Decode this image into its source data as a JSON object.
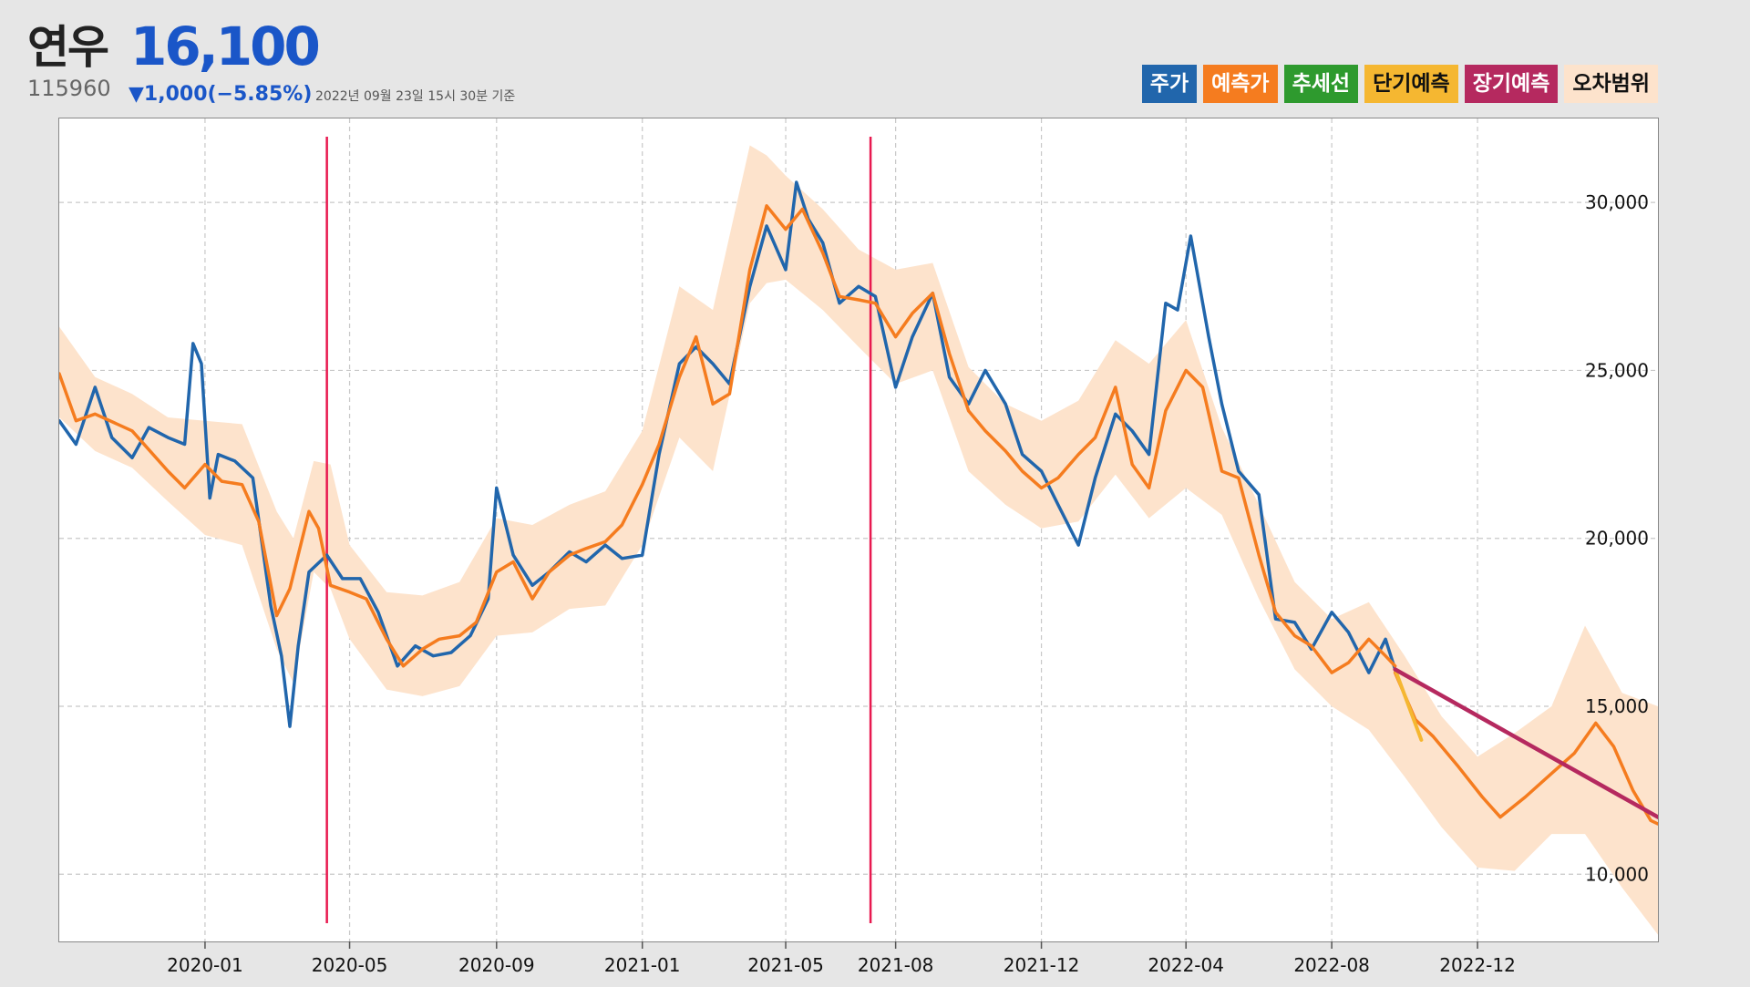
{
  "header": {
    "name": "연우",
    "price": "16,100",
    "code": "115960",
    "change": "▼1,000(−5.85%)",
    "timestamp": "2022년 09월 23일 15시 30분 기준"
  },
  "legend": [
    {
      "label": "주가",
      "bg": "#2166ac",
      "fg": "#ffffff"
    },
    {
      "label": "예측가",
      "bg": "#f57c1f",
      "fg": "#ffffff"
    },
    {
      "label": "추세선",
      "bg": "#2e9a2e",
      "fg": "#ffffff"
    },
    {
      "label": "단기예측",
      "bg": "#f5b731",
      "fg": "#111111"
    },
    {
      "label": "장기예측",
      "bg": "#b5295f",
      "fg": "#ffffff"
    },
    {
      "label": "오차범위",
      "bg": "#fde3cc",
      "fg": "#111111"
    }
  ],
  "colors": {
    "price": "#2166ac",
    "predicted": "#f57c1f",
    "band": "#fde3cc",
    "short_term": "#f5b731",
    "long_term": "#b5295f",
    "event_line": "#e8194f",
    "grid": "#c8c8c8"
  },
  "chart_data": {
    "type": "line",
    "x_type": "date",
    "xlim": [
      "2019-09-01",
      "2023-05-01"
    ],
    "ylim": [
      8000,
      32500
    ],
    "x_ticks": [
      "2020-01",
      "2020-05",
      "2020-09",
      "2021-01",
      "2021-05",
      "2021-08",
      "2021-12",
      "2022-04",
      "2022-08",
      "2022-12"
    ],
    "y_ticks": [
      10000,
      15000,
      20000,
      25000,
      30000
    ],
    "y_tick_labels": [
      "10,000",
      "15,000",
      "20,000",
      "25,000",
      "30,000"
    ],
    "grid": true,
    "legend_position": "top-right",
    "event_lines": [
      "2020-04-12",
      "2021-07-11"
    ],
    "series": [
      {
        "name": "주가",
        "x": [
          "2019-09-01",
          "2019-09-15",
          "2019-10-01",
          "2019-10-15",
          "2019-11-01",
          "2019-11-15",
          "2019-12-01",
          "2019-12-15",
          "2019-12-22",
          "2019-12-29",
          "2020-01-05",
          "2020-01-12",
          "2020-01-26",
          "2020-02-10",
          "2020-02-25",
          "2020-03-05",
          "2020-03-12",
          "2020-03-19",
          "2020-03-28",
          "2020-04-12",
          "2020-04-25",
          "2020-05-10",
          "2020-05-25",
          "2020-06-10",
          "2020-06-25",
          "2020-07-10",
          "2020-07-25",
          "2020-08-10",
          "2020-08-25",
          "2020-09-01",
          "2020-09-15",
          "2020-10-01",
          "2020-10-15",
          "2020-11-01",
          "2020-11-15",
          "2020-12-01",
          "2020-12-15",
          "2021-01-01",
          "2021-01-15",
          "2021-02-01",
          "2021-02-15",
          "2021-03-01",
          "2021-03-15",
          "2021-04-01",
          "2021-04-15",
          "2021-05-01",
          "2021-05-10",
          "2021-05-20",
          "2021-06-01",
          "2021-06-15",
          "2021-07-01",
          "2021-07-15",
          "2021-08-01",
          "2021-08-15",
          "2021-09-01",
          "2021-09-15",
          "2021-10-01",
          "2021-10-15",
          "2021-11-01",
          "2021-11-15",
          "2021-12-01",
          "2021-12-15",
          "2022-01-01",
          "2022-01-15",
          "2022-02-01",
          "2022-02-15",
          "2022-03-01",
          "2022-03-15",
          "2022-03-25",
          "2022-04-05",
          "2022-04-20",
          "2022-05-01",
          "2022-05-15",
          "2022-06-01",
          "2022-06-15",
          "2022-07-01",
          "2022-07-15",
          "2022-08-01",
          "2022-08-15",
          "2022-09-01",
          "2022-09-15",
          "2022-09-23"
        ],
        "y": [
          23500,
          22800,
          24500,
          23000,
          22400,
          23300,
          23000,
          22800,
          25800,
          25200,
          21200,
          22500,
          22300,
          21800,
          18000,
          16500,
          14400,
          16800,
          19000,
          19500,
          18800,
          18800,
          17800,
          16200,
          16800,
          16500,
          16600,
          17100,
          18200,
          21500,
          19500,
          18600,
          19000,
          19600,
          19300,
          19800,
          19400,
          19500,
          22500,
          25200,
          25700,
          25200,
          24600,
          27500,
          29300,
          28000,
          30600,
          29500,
          28800,
          27000,
          27500,
          27200,
          24500,
          26000,
          27300,
          24800,
          24000,
          25000,
          24000,
          22500,
          22000,
          21000,
          19800,
          21800,
          23700,
          23200,
          22500,
          27000,
          26800,
          29000,
          26000,
          24000,
          22000,
          21300,
          17600,
          17500,
          16700,
          17800,
          17200,
          16000,
          17000,
          16100
        ]
      },
      {
        "name": "예측가",
        "x": [
          "2019-09-01",
          "2019-09-15",
          "2019-10-01",
          "2019-11-01",
          "2019-12-01",
          "2019-12-15",
          "2020-01-01",
          "2020-01-15",
          "2020-02-01",
          "2020-02-15",
          "2020-03-01",
          "2020-03-12",
          "2020-03-28",
          "2020-04-05",
          "2020-04-15",
          "2020-05-01",
          "2020-05-15",
          "2020-06-01",
          "2020-06-15",
          "2020-07-01",
          "2020-07-15",
          "2020-08-01",
          "2020-08-15",
          "2020-09-01",
          "2020-09-15",
          "2020-10-01",
          "2020-10-15",
          "2020-11-01",
          "2020-11-15",
          "2020-12-01",
          "2020-12-15",
          "2021-01-01",
          "2021-01-15",
          "2021-02-01",
          "2021-02-15",
          "2021-03-01",
          "2021-03-15",
          "2021-04-01",
          "2021-04-15",
          "2021-05-01",
          "2021-05-15",
          "2021-06-01",
          "2021-06-15",
          "2021-07-01",
          "2021-07-15",
          "2021-08-01",
          "2021-08-15",
          "2021-09-01",
          "2021-09-15",
          "2021-10-01",
          "2021-10-15",
          "2021-11-01",
          "2021-11-15",
          "2021-12-01",
          "2021-12-15",
          "2022-01-01",
          "2022-01-15",
          "2022-02-01",
          "2022-02-15",
          "2022-03-01",
          "2022-03-15",
          "2022-04-01",
          "2022-04-15",
          "2022-05-01",
          "2022-05-15",
          "2022-06-01",
          "2022-06-15",
          "2022-07-01",
          "2022-07-15",
          "2022-08-01",
          "2022-08-15",
          "2022-09-01",
          "2022-09-15",
          "2022-09-23"
        ],
        "y": [
          24900,
          23500,
          23700,
          23200,
          22000,
          21500,
          22200,
          21700,
          21600,
          20500,
          17700,
          18500,
          20800,
          20300,
          18600,
          18400,
          18200,
          17000,
          16200,
          16700,
          17000,
          17100,
          17500,
          19000,
          19300,
          18200,
          19000,
          19500,
          19700,
          19900,
          20400,
          21600,
          22800,
          24800,
          26000,
          24000,
          24300,
          28000,
          29900,
          29200,
          29800,
          28500,
          27200,
          27100,
          27000,
          26000,
          26700,
          27300,
          25500,
          23800,
          23200,
          22600,
          22000,
          21500,
          21800,
          22500,
          23000,
          24500,
          22200,
          21500,
          23800,
          25000,
          24500,
          22000,
          21800,
          19500,
          17800,
          17100,
          16800,
          16000,
          16300,
          17000,
          16500,
          16200
        ]
      },
      {
        "name": "단기예측",
        "x": [
          "2022-09-23",
          "2022-10-15"
        ],
        "y": [
          16100,
          14000
        ]
      },
      {
        "name": "장기예측",
        "x": [
          "2022-09-23",
          "2023-05-01"
        ],
        "y": [
          16100,
          11700
        ]
      },
      {
        "name": "예측가-forecast",
        "x": [
          "2022-09-23",
          "2022-10-10",
          "2022-10-25",
          "2022-11-15",
          "2022-12-05",
          "2022-12-20",
          "2023-01-10",
          "2023-02-01",
          "2023-02-20",
          "2023-03-10",
          "2023-03-25",
          "2023-04-10",
          "2023-04-25",
          "2023-05-01"
        ],
        "y": [
          16000,
          14600,
          14100,
          13200,
          12300,
          11700,
          12300,
          13000,
          13600,
          14500,
          13800,
          12500,
          11600,
          11500
        ]
      }
    ],
    "band": {
      "name": "오차범위",
      "x": [
        "2019-09-01",
        "2019-10-01",
        "2019-11-01",
        "2019-12-01",
        "2020-01-01",
        "2020-02-01",
        "2020-03-01",
        "2020-03-15",
        "2020-04-01",
        "2020-04-15",
        "2020-05-01",
        "2020-06-01",
        "2020-07-01",
        "2020-08-01",
        "2020-09-01",
        "2020-10-01",
        "2020-11-01",
        "2020-12-01",
        "2021-01-01",
        "2021-02-01",
        "2021-03-01",
        "2021-04-01",
        "2021-04-15",
        "2021-05-01",
        "2021-06-01",
        "2021-07-01",
        "2021-08-01",
        "2021-09-01",
        "2021-10-01",
        "2021-11-01",
        "2021-12-01",
        "2022-01-01",
        "2022-02-01",
        "2022-03-01",
        "2022-04-01",
        "2022-05-01",
        "2022-06-01",
        "2022-07-01",
        "2022-08-01",
        "2022-09-01",
        "2022-10-01",
        "2022-11-01",
        "2022-12-01",
        "2023-01-01",
        "2023-02-01",
        "2023-03-01",
        "2023-04-01",
        "2023-05-01"
      ],
      "upper": [
        26300,
        24800,
        24300,
        23600,
        23500,
        23400,
        20800,
        20000,
        22300,
        22200,
        19800,
        18400,
        18300,
        18700,
        20600,
        20400,
        21000,
        21400,
        23200,
        27500,
        26800,
        31700,
        31400,
        30800,
        29800,
        28600,
        28000,
        28200,
        25100,
        24000,
        23500,
        24100,
        25900,
        25200,
        26500,
        23300,
        21000,
        18700,
        17600,
        18100,
        16500,
        14700,
        13500,
        14200,
        15000,
        17400,
        15400,
        15000
      ],
      "lower": [
        23600,
        22600,
        22100,
        21100,
        20100,
        19800,
        16700,
        15700,
        19000,
        18500,
        17000,
        15500,
        15300,
        15600,
        17100,
        17200,
        17900,
        18000,
        19800,
        23000,
        22000,
        27000,
        27600,
        27700,
        26800,
        25700,
        24600,
        25000,
        22000,
        21000,
        20300,
        20500,
        21900,
        20600,
        21500,
        20700,
        18200,
        16100,
        15000,
        14300,
        12900,
        11400,
        10200,
        10100,
        11200,
        11200,
        9600,
        8200
      ]
    }
  }
}
